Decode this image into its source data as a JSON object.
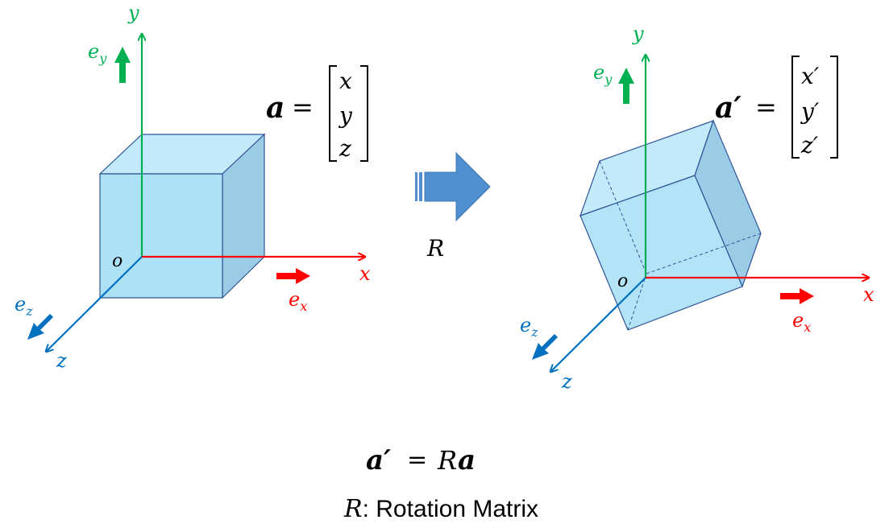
{
  "colors": {
    "x_axis": "#ff0000",
    "y_axis": "#00b050",
    "z_axis": "#0070c0",
    "cube_fill": "#9fdcf5",
    "cube_edge": "#2f5597",
    "arrow_fill": "#4f8fd0",
    "text": "#000000"
  },
  "left_frame": {
    "x_label": "x",
    "y_label": "y",
    "z_label": "z",
    "origin_label": "o",
    "ex_base": "e",
    "ex_sub": "x",
    "ey_base": "e",
    "ey_sub": "y",
    "ez_base": "e",
    "ez_sub": "z",
    "vector_lhs": "a",
    "equals": "=",
    "components": [
      "x",
      "y",
      "z"
    ]
  },
  "right_frame": {
    "x_label": "x",
    "y_label": "y",
    "z_label": "z",
    "origin_label": "o",
    "ex_base": "e",
    "ex_sub": "x",
    "ey_base": "e",
    "ey_sub": "y",
    "ez_base": "e",
    "ez_sub": "z",
    "vector_lhs": "a′",
    "equals": "=",
    "components": [
      "x′",
      "y′",
      "z′"
    ]
  },
  "transform_label": "R",
  "equation": {
    "lhs": "a′",
    "equals": "=",
    "rhs_matrix": "R",
    "rhs_vector": "a"
  },
  "caption": {
    "symbol": "R",
    "text": ": Rotation Matrix"
  }
}
